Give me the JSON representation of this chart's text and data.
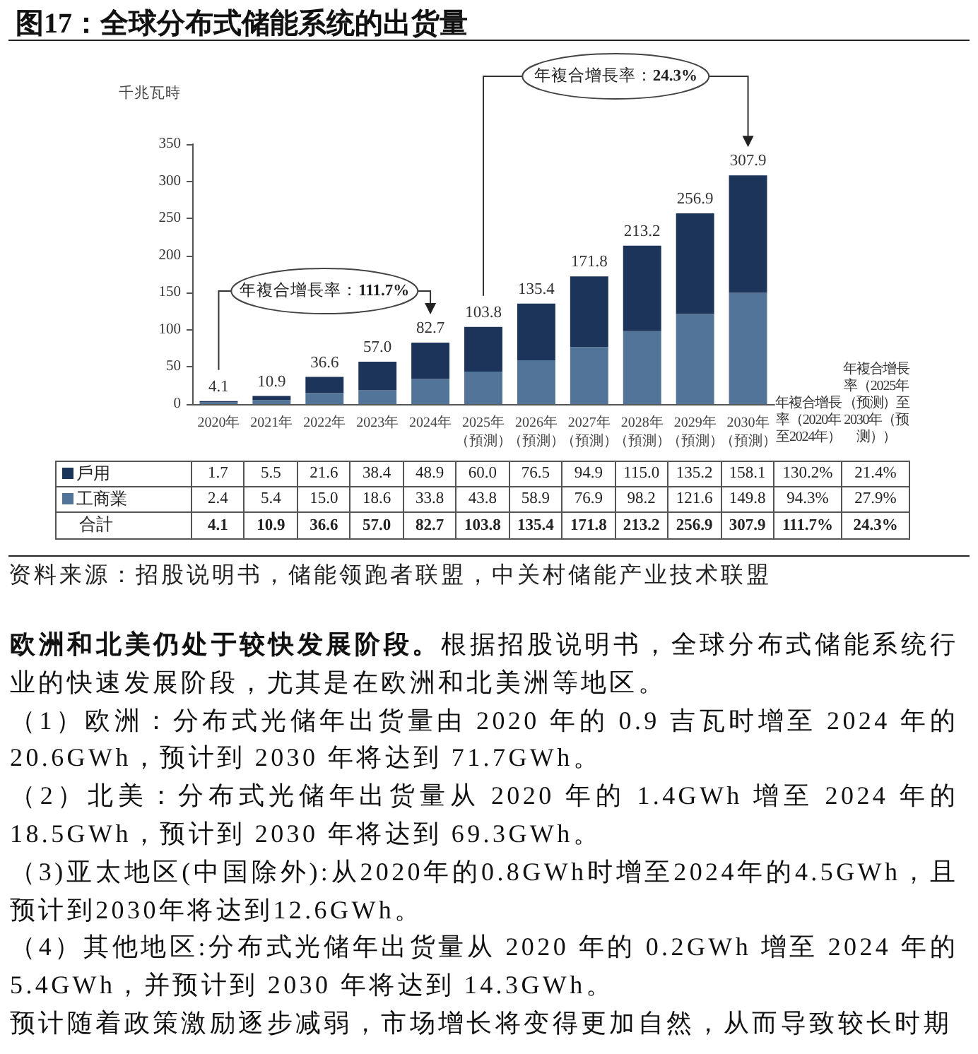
{
  "chart_data": {
    "type": "bar",
    "title": "图17：全球分布式储能系统的出货量",
    "ylabel": "千兆瓦時",
    "categories": [
      "2020年",
      "2021年",
      "2022年",
      "2023年",
      "2024年",
      "2025年（預測）",
      "2026年（預測）",
      "2027年（預測）",
      "2028年（預測）",
      "2029年（預測）",
      "2030年（預測）",
      "年複合增長率（2020年至2024年）",
      "年複合增長率（2025年（预测）至2030年（预测））"
    ],
    "series": [
      {
        "name": "工商業",
        "color": "#527498",
        "values": [
          2.4,
          5.4,
          15.0,
          18.6,
          33.8,
          43.8,
          58.9,
          76.9,
          98.2,
          121.6,
          149.8,
          null,
          null
        ],
        "value_labels": [
          "2.4",
          "5.4",
          "15.0",
          "18.6",
          "33.8",
          "43.8",
          "58.9",
          "76.9",
          "98.2",
          "121.6",
          "149.8",
          "94.3%",
          "27.9%"
        ]
      },
      {
        "name": "戶用",
        "color": "#1c335a",
        "values": [
          1.7,
          5.5,
          21.6,
          38.4,
          48.9,
          60.0,
          76.5,
          94.9,
          115.0,
          135.2,
          158.1,
          null,
          null
        ],
        "value_labels": [
          "1.7",
          "5.5",
          "21.6",
          "38.4",
          "48.9",
          "60.0",
          "76.5",
          "94.9",
          "115.0",
          "135.2",
          "158.1",
          "130.2%",
          "21.4%"
        ]
      }
    ],
    "stacked": true,
    "totals": [
      "4.1",
      "10.9",
      "36.6",
      "57.0",
      "82.7",
      "103.8",
      "135.4",
      "171.8",
      "213.2",
      "256.9",
      "307.9",
      null,
      null
    ],
    "ylim": [
      0,
      350
    ],
    "yticks": [
      0,
      50,
      100,
      150,
      200,
      250,
      300,
      350
    ],
    "legend": "bottom",
    "annotations": [
      "年複合增長率：111.7%",
      "年複合增長率：24.3%",
      "合計",
      "111.7%",
      "24.3%",
      "资料来源：招股说明书，储能领跑者联盟，中关村储能产业技术联盟",
      "欧洲和北美仍处于较快发展阶段。",
      "根据招股说明书，全球分布式储能系统行业的快速发展阶段，尤其是在欧洲和北美洲等地区。",
      "（1）欧洲：分布式光储年出货量由 2020 年的 0.9 吉瓦时增至 2024 年的 20.6GWh，预计到 2030 年将达到 71.7GWh。",
      "（2）北美：分布式光储年出货量从 2020 年的 1.4GWh 增至 2024 年的 18.5GWh，预计到 2030 年将达到 69.3GWh。",
      "（3)亚太地区(中国除外):从2020年的0.8GWh时增至2024年的4.5GWh，且预计到2030年将达到12.6GWh。",
      "（4）其他地区:分布式光储年出货量从 2020 年的 0.2GWh 增至 2024 年的 5.4GWh，并预计到 2030 年将达到 14.3GWh。",
      "预计随着政策激励逐步减弱，市场增长将变得更加自然，从而导致较长时期"
    ]
  }
}
